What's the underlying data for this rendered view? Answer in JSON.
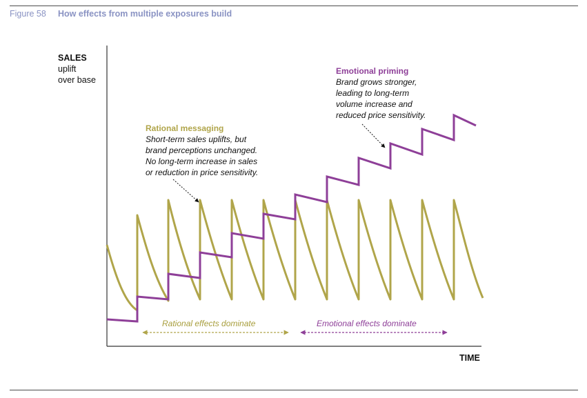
{
  "figure": {
    "number": "Figure 58",
    "title": "How effects from multiple exposures build"
  },
  "axes": {
    "y_label_bold": "SALES",
    "y_label_line2": "uplift",
    "y_label_line3": "over base",
    "x_label": "TIME"
  },
  "annotations": {
    "rational": {
      "heading": "Rational messaging",
      "body": "Short-term sales uplifts, but\nbrand perceptions unchanged.\nNo long-term increase in sales\nor reduction in price sensitivity."
    },
    "emotional": {
      "heading": "Emotional priming",
      "body": "Brand grows stronger,\nleading to long-term\nvolume increase and\nreduced price sensitivity."
    }
  },
  "ranges": {
    "rational_label": "Rational effects dominate",
    "emotional_label": "Emotional effects dominate"
  },
  "colors": {
    "rational": "#b0a54a",
    "emotional": "#8e3f98",
    "axis": "#333333"
  }
}
